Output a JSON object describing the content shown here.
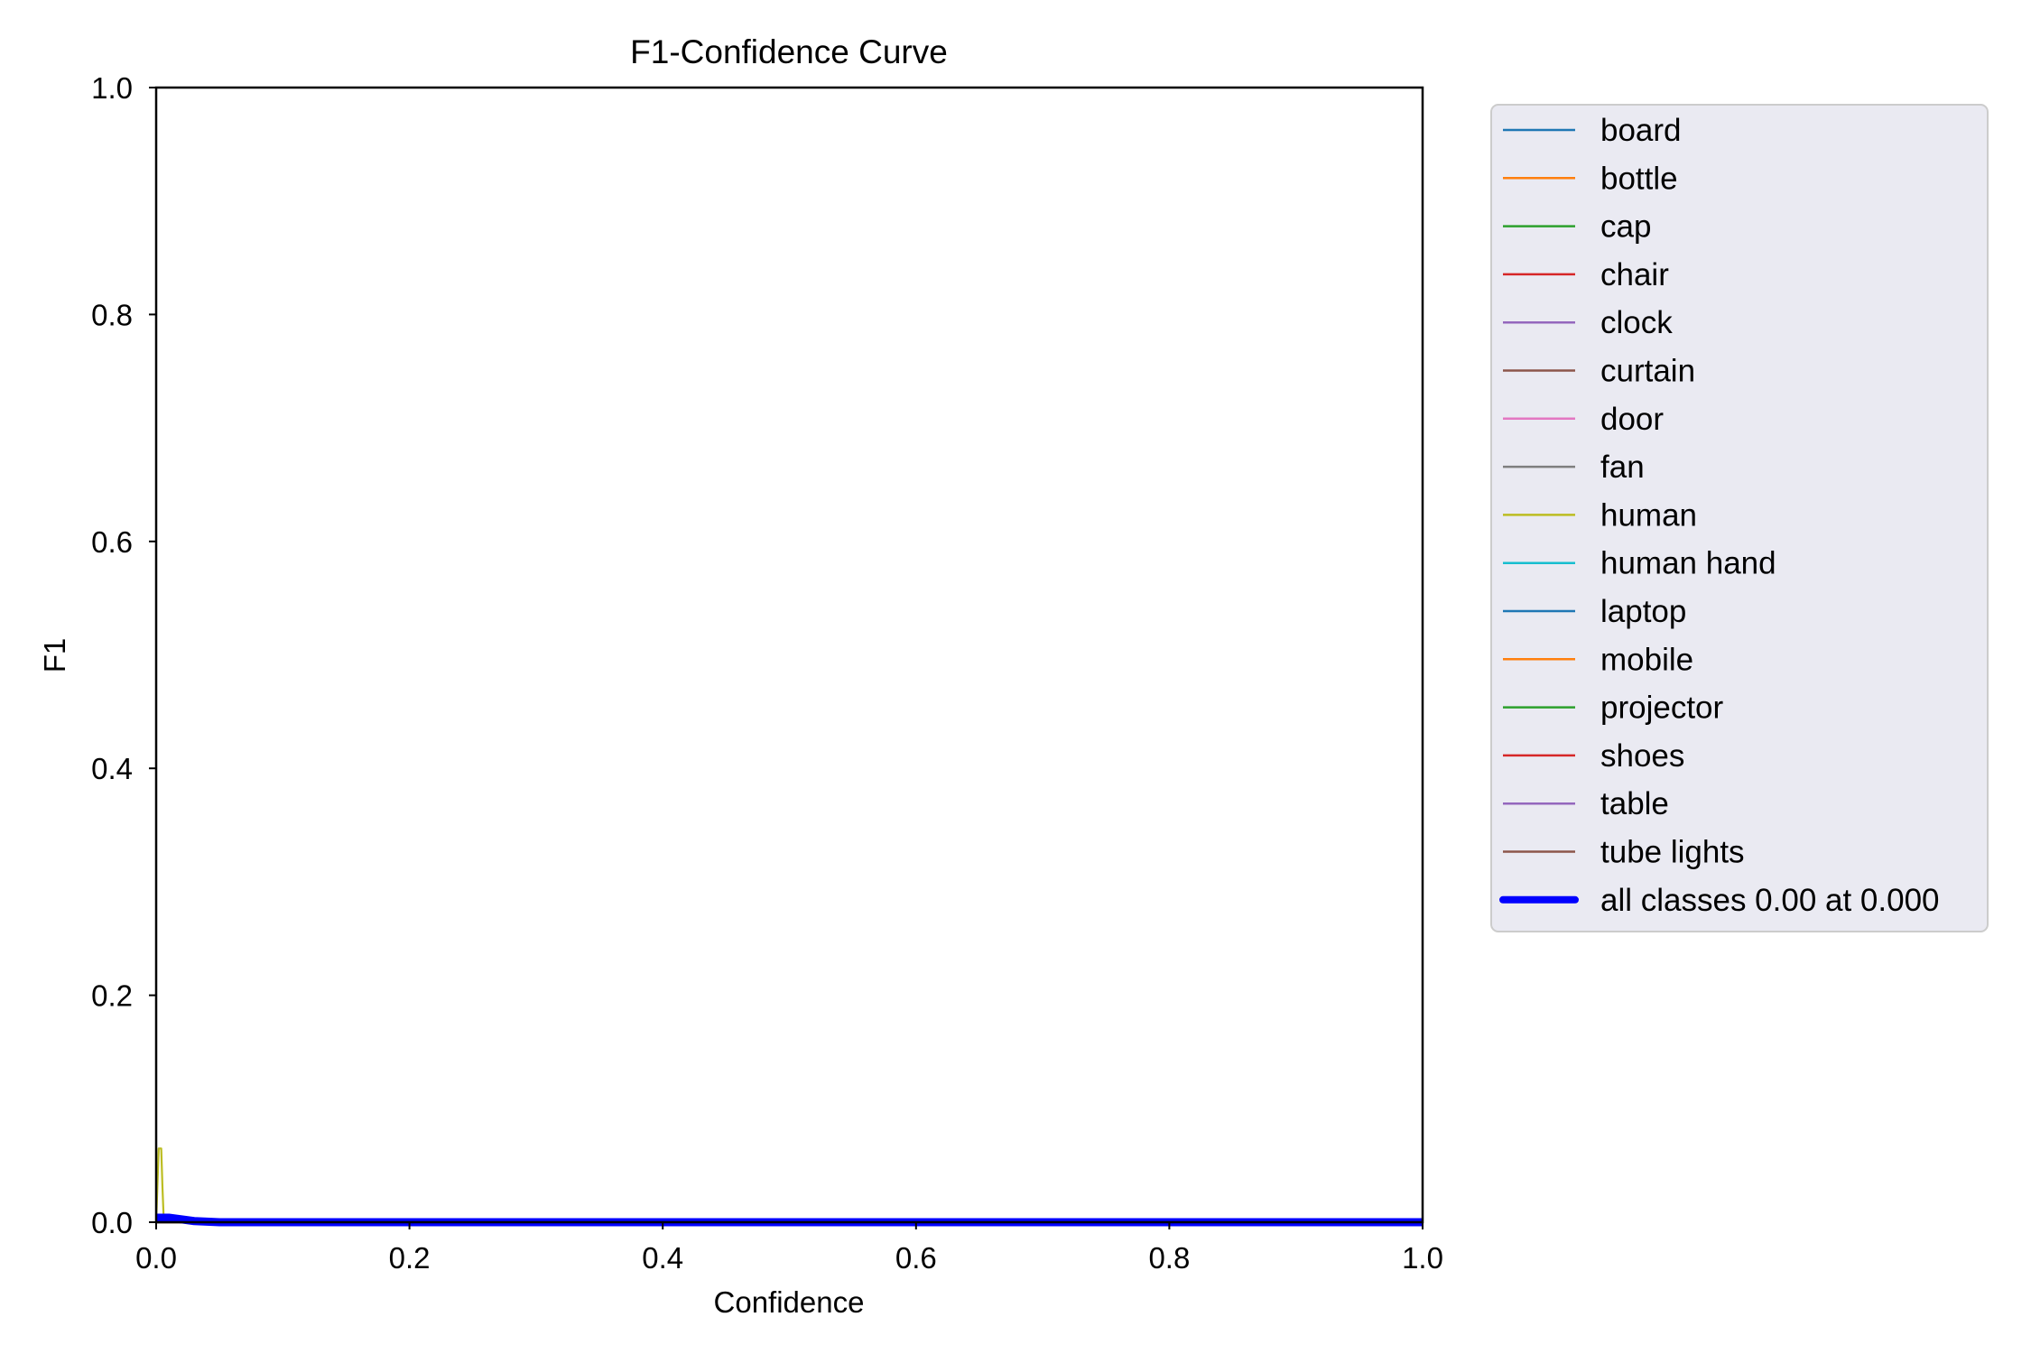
{
  "chart_data": {
    "type": "line",
    "title": "F1-Confidence Curve",
    "xlabel": "Confidence",
    "ylabel": "F1",
    "xlim": [
      0,
      1
    ],
    "ylim": [
      0,
      1
    ],
    "xticks": [
      "0.0",
      "0.2",
      "0.4",
      "0.6",
      "0.8",
      "1.0"
    ],
    "yticks": [
      "0.0",
      "0.2",
      "0.4",
      "0.6",
      "0.8",
      "1.0"
    ],
    "grid": false,
    "legend_position": "outside-right-top",
    "series": [
      {
        "name": "board",
        "color": "#1f77b4",
        "x": [
          0,
          1
        ],
        "y": [
          0,
          0
        ]
      },
      {
        "name": "bottle",
        "color": "#ff7f0e",
        "x": [
          0,
          1
        ],
        "y": [
          0,
          0
        ]
      },
      {
        "name": "cap",
        "color": "#2ca02c",
        "x": [
          0,
          1
        ],
        "y": [
          0,
          0
        ]
      },
      {
        "name": "chair",
        "color": "#d62728",
        "x": [
          0,
          1
        ],
        "y": [
          0,
          0
        ]
      },
      {
        "name": "clock",
        "color": "#9467bd",
        "x": [
          0,
          1
        ],
        "y": [
          0,
          0
        ]
      },
      {
        "name": "curtain",
        "color": "#8c564b",
        "x": [
          0,
          1
        ],
        "y": [
          0,
          0
        ]
      },
      {
        "name": "door",
        "color": "#e377c2",
        "x": [
          0,
          1
        ],
        "y": [
          0,
          0
        ]
      },
      {
        "name": "fan",
        "color": "#7f7f7f",
        "x": [
          0,
          1
        ],
        "y": [
          0,
          0
        ]
      },
      {
        "name": "human",
        "color": "#bcbd22",
        "x": [
          0,
          0.002,
          0.004,
          0.005,
          0.006,
          0.01,
          1
        ],
        "y": [
          0,
          0.065,
          0.065,
          0.03,
          0.002,
          0,
          0
        ]
      },
      {
        "name": "human hand",
        "color": "#17becf",
        "x": [
          0,
          1
        ],
        "y": [
          0,
          0
        ]
      },
      {
        "name": "laptop",
        "color": "#1f77b4",
        "x": [
          0,
          1
        ],
        "y": [
          0,
          0
        ]
      },
      {
        "name": "mobile",
        "color": "#ff7f0e",
        "x": [
          0,
          1
        ],
        "y": [
          0,
          0
        ]
      },
      {
        "name": "projector",
        "color": "#2ca02c",
        "x": [
          0,
          1
        ],
        "y": [
          0,
          0
        ]
      },
      {
        "name": "shoes",
        "color": "#d62728",
        "x": [
          0,
          1
        ],
        "y": [
          0,
          0
        ]
      },
      {
        "name": "table",
        "color": "#9467bd",
        "x": [
          0,
          1
        ],
        "y": [
          0,
          0
        ]
      },
      {
        "name": "tube lights",
        "color": "#8c564b",
        "x": [
          0,
          1
        ],
        "y": [
          0,
          0
        ]
      },
      {
        "name": "all classes 0.00 at 0.000",
        "color": "#0000ff",
        "bold": true,
        "x": [
          0,
          0.01,
          0.03,
          0.05,
          1
        ],
        "y": [
          0.004,
          0.004,
          0.001,
          0,
          0
        ]
      }
    ]
  }
}
